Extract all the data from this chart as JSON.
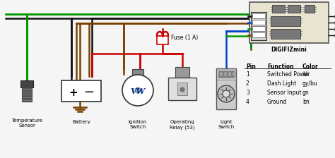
{
  "bg_color": "#f5f5f5",
  "wire_green": "#009900",
  "wire_red": "#cc0000",
  "wire_black": "#111111",
  "wire_brown": "#7B3F00",
  "wire_blue": "#0044cc",
  "pin_table": {
    "headers": [
      "Pin",
      "Function",
      "Color"
    ],
    "rows": [
      [
        "1",
        "Switched Power",
        "bk"
      ],
      [
        "2",
        "Dash Light",
        "gy/bu"
      ],
      [
        "3",
        "Sensor Input",
        "gn"
      ],
      [
        "4",
        "Ground",
        "bn"
      ]
    ]
  },
  "digifiz_label": "DIGIFIZmini",
  "component_labels": [
    "Temperature\nSensor",
    "Battery",
    "Ignition\nSwitch",
    "Operating\nRelay (53)",
    "Light\nSwitch"
  ],
  "fuse_label": "Fuse (1 A)"
}
